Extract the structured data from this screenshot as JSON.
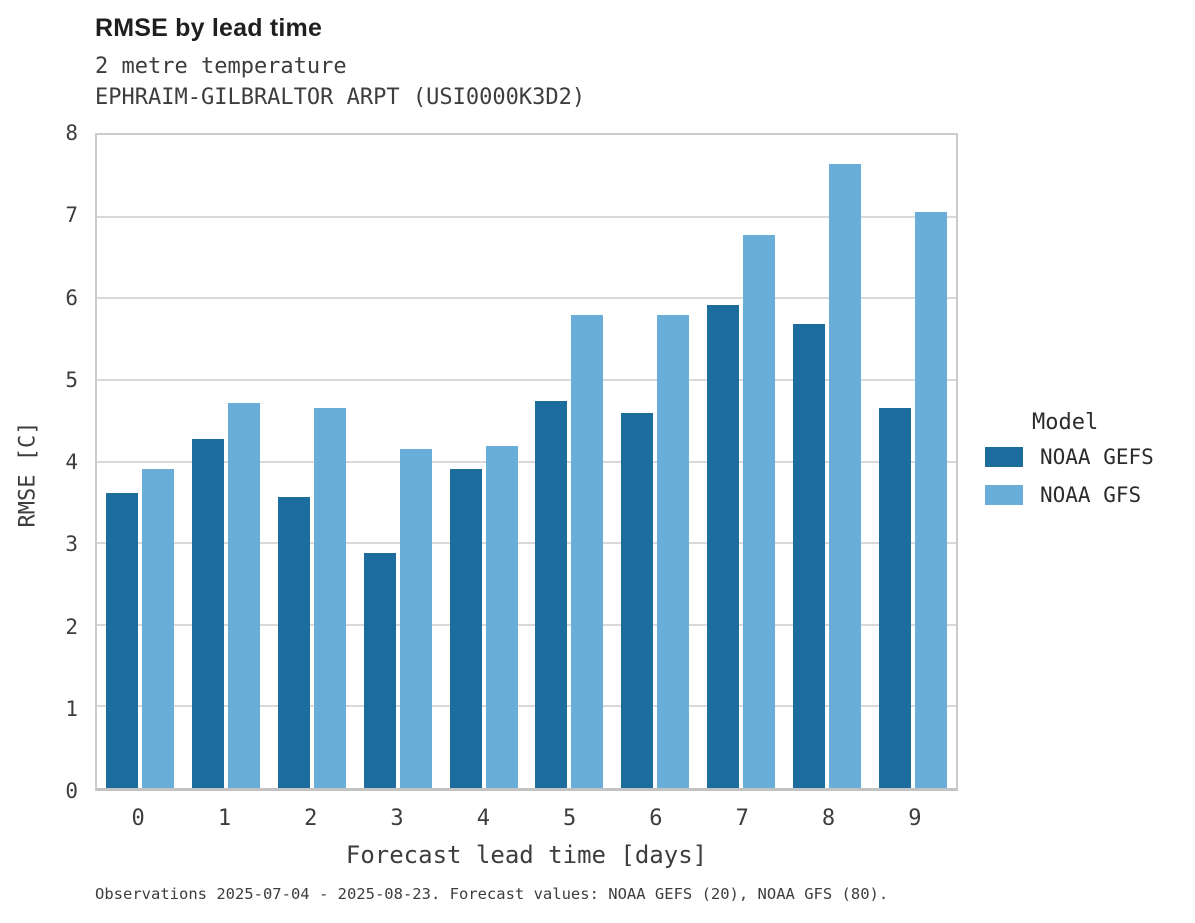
{
  "header": {
    "title": "RMSE by lead time",
    "subtitle_line1": "2 metre temperature",
    "subtitle_line2": "EPHRAIM-GILBRALTOR ARPT (USI0000K3D2)"
  },
  "chart_data": {
    "type": "bar",
    "title": "RMSE by lead time",
    "subtitle": [
      "2 metre temperature",
      "EPHRAIM-GILBRALTOR ARPT (USI0000K3D2)"
    ],
    "categories": [
      "0",
      "1",
      "2",
      "3",
      "4",
      "5",
      "6",
      "7",
      "8",
      "9"
    ],
    "series": [
      {
        "name": "NOAA GEFS",
        "color": "#1c6c9e",
        "values": [
          3.62,
          4.27,
          3.57,
          2.88,
          3.91,
          4.74,
          4.6,
          5.92,
          5.69,
          4.65
        ]
      },
      {
        "name": "NOAA GFS",
        "color": "#68aed8",
        "values": [
          3.91,
          4.72,
          4.66,
          4.15,
          4.19,
          5.8,
          5.8,
          6.77,
          7.64,
          7.06
        ]
      }
    ],
    "xlabel": "Forecast lead time [days]",
    "ylabel": "RMSE [C]",
    "ylim": [
      0,
      8
    ],
    "yticks": [
      0,
      1,
      2,
      3,
      4,
      5,
      6,
      7,
      8
    ],
    "grid": "horizontal",
    "legend_title": "Model",
    "legend_position": "right",
    "grid_color": "#d9d9d9",
    "spine_color": "#cccccc"
  },
  "legend": {
    "title": "Model",
    "entries": [
      {
        "label": "NOAA GEFS",
        "color": "#1c6c9e"
      },
      {
        "label": "NOAA GFS",
        "color": "#68aed8"
      }
    ]
  },
  "caption": "Observations 2025-07-04 - 2025-08-23. Forecast values: NOAA GEFS (20), NOAA GFS (80)."
}
